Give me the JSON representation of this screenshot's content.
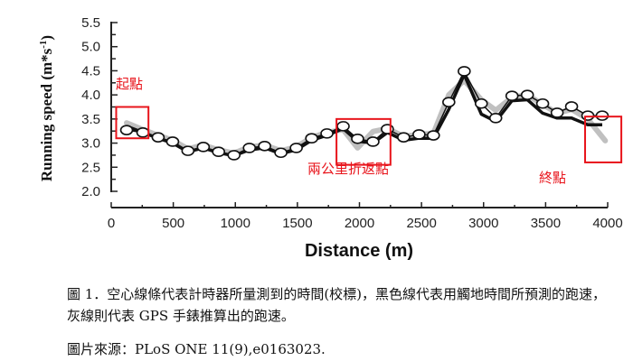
{
  "chart_data": {
    "type": "line",
    "title": "",
    "xlabel": "Distance (m)",
    "ylabel": "Running speed (m*s-1)",
    "ylabel_parts": {
      "main": "Running speed (m*s",
      "sup": "-1",
      "close": ")"
    },
    "xlim": [
      0,
      4000
    ],
    "ylim": [
      2.0,
      5.5
    ],
    "xticks": [
      0,
      500,
      1000,
      1500,
      2000,
      2500,
      3000,
      3500,
      4000
    ],
    "yticks": [
      2.0,
      2.5,
      3.0,
      3.5,
      4.0,
      4.5,
      5.0,
      5.5
    ],
    "ytick_labels": [
      "2.0",
      "2.5",
      "3.0",
      "3.5",
      "4.0",
      "4.5",
      "5.0",
      "5.5"
    ],
    "grid": false,
    "series": [
      {
        "name": "Timer-measured (calibrated) speed",
        "style": "open-circle markers",
        "color": "#ffffff",
        "x": [
          124,
          255,
          378,
          495,
          618,
          742,
          865,
          989,
          1113,
          1236,
          1367,
          1491,
          1615,
          1738,
          1869,
          1985,
          2109,
          2225,
          2356,
          2480,
          2596,
          2720,
          2844,
          2982,
          3098,
          3229,
          3353,
          3476,
          3593,
          3709,
          3840,
          3956
        ],
        "values": [
          3.27,
          3.22,
          3.12,
          3.03,
          2.84,
          2.92,
          2.82,
          2.75,
          2.9,
          2.94,
          2.8,
          2.9,
          3.1,
          3.2,
          3.35,
          3.09,
          3.03,
          3.29,
          3.12,
          3.18,
          3.16,
          3.85,
          4.49,
          3.82,
          3.52,
          3.98,
          4.0,
          3.82,
          3.63,
          3.76,
          3.57,
          3.57
        ]
      },
      {
        "name": "Ground-contact-time predicted speed",
        "style": "black line",
        "color": "#111111",
        "x": [
          124,
          255,
          378,
          495,
          618,
          742,
          865,
          989,
          1113,
          1236,
          1367,
          1491,
          1615,
          1738,
          1869,
          1985,
          2109,
          2225,
          2356,
          2480,
          2596,
          2720,
          2844,
          2982,
          3098,
          3229,
          3353,
          3476,
          3593,
          3709,
          3840,
          3956
        ],
        "values": [
          3.35,
          3.22,
          3.1,
          3.0,
          2.82,
          2.9,
          2.8,
          2.74,
          2.86,
          2.9,
          2.78,
          2.86,
          3.06,
          3.16,
          3.3,
          3.04,
          3.0,
          3.22,
          3.06,
          3.1,
          3.1,
          3.7,
          4.42,
          3.6,
          3.45,
          3.88,
          3.9,
          3.62,
          3.52,
          3.52,
          3.38,
          3.38
        ]
      },
      {
        "name": "GPS watch estimated speed",
        "style": "gray line",
        "color": "#c0c0c0",
        "x": [
          124,
          255,
          378,
          495,
          618,
          742,
          865,
          989,
          1113,
          1236,
          1367,
          1491,
          1615,
          1738,
          1869,
          1985,
          2109,
          2225,
          2356,
          2480,
          2596,
          2720,
          2844,
          2982,
          3098,
          3229,
          3353,
          3476,
          3593,
          3709,
          3840,
          3980
        ],
        "values": [
          3.42,
          3.28,
          3.16,
          3.06,
          2.88,
          2.96,
          2.86,
          2.79,
          2.92,
          2.96,
          2.84,
          2.92,
          3.12,
          3.22,
          3.28,
          2.9,
          3.24,
          3.3,
          3.14,
          3.18,
          3.2,
          4.0,
          4.3,
          3.9,
          3.68,
          3.95,
          4.0,
          3.8,
          3.62,
          3.7,
          3.5,
          3.05
        ]
      }
    ],
    "annotations": [
      {
        "text": "起點",
        "x": 0,
        "y": 4.35,
        "box": {
          "x0": 40,
          "x1": 300,
          "y0": 3.1,
          "y1": 3.75
        }
      },
      {
        "text": "兩公里折返點",
        "x": 1600,
        "y": 2.55,
        "box": {
          "x0": 1815,
          "x1": 2250,
          "y0": 2.55,
          "y1": 3.5
        }
      },
      {
        "text": "終點",
        "x": 3450,
        "y": 2.25,
        "box": {
          "x0": 3818,
          "x1": 4110,
          "y0": 2.6,
          "y1": 3.55
        }
      }
    ],
    "annotation_color": "#e8141b"
  },
  "caption": {
    "figure_text": "圖 1．空心線條代表計時器所量測到的時間(校標)，黑色線代表用觸地時間所預測的跑速，灰線則代表 GPS 手錶推算出的跑速。",
    "source_text": "圖片來源：PLoS ONE 11(9),e0163023."
  }
}
